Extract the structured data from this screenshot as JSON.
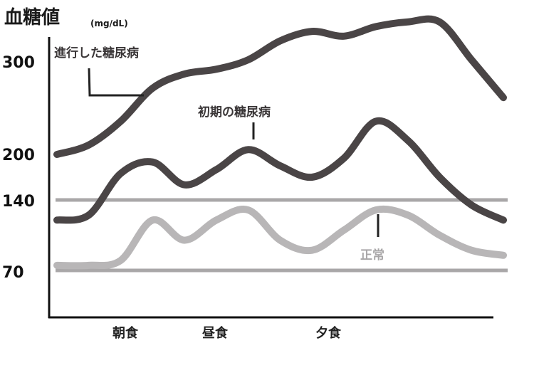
{
  "chart_data": {
    "type": "line",
    "title": "血糖値",
    "unit": "(mg/dL)",
    "y_ticks": [
      300,
      200,
      140,
      70
    ],
    "reference_lines": [
      140,
      70
    ],
    "meals": [
      "朝食",
      "昼食",
      "夕食"
    ],
    "series": [
      {
        "name": "進行した糖尿病",
        "color": "#4a4546",
        "points": [
          [
            0,
            200
          ],
          [
            1,
            210
          ],
          [
            2,
            235
          ],
          [
            3,
            270
          ],
          [
            4,
            285
          ],
          [
            5,
            290
          ],
          [
            6,
            300
          ],
          [
            7,
            320
          ],
          [
            8,
            330
          ],
          [
            9,
            325
          ],
          [
            10,
            335
          ],
          [
            11,
            340
          ],
          [
            12,
            340
          ],
          [
            13,
            300
          ],
          [
            14,
            260
          ]
        ]
      },
      {
        "name": "初期の糖尿病",
        "color": "#4a4546",
        "points": [
          [
            0,
            120
          ],
          [
            1,
            125
          ],
          [
            2,
            175
          ],
          [
            3,
            190
          ],
          [
            4,
            160
          ],
          [
            5,
            180
          ],
          [
            6,
            205
          ],
          [
            7,
            185
          ],
          [
            8,
            170
          ],
          [
            9,
            195
          ],
          [
            10,
            235
          ],
          [
            11,
            215
          ],
          [
            12,
            170
          ],
          [
            13,
            135
          ],
          [
            14,
            120
          ]
        ]
      },
      {
        "name": "正常",
        "color": "#b8b6b7",
        "points": [
          [
            0,
            75
          ],
          [
            1,
            75
          ],
          [
            2,
            80
          ],
          [
            3,
            120
          ],
          [
            4,
            100
          ],
          [
            5,
            120
          ],
          [
            6,
            130
          ],
          [
            7,
            100
          ],
          [
            8,
            90
          ],
          [
            9,
            110
          ],
          [
            10,
            130
          ],
          [
            11,
            125
          ],
          [
            12,
            105
          ],
          [
            13,
            90
          ],
          [
            14,
            85
          ]
        ]
      }
    ]
  }
}
